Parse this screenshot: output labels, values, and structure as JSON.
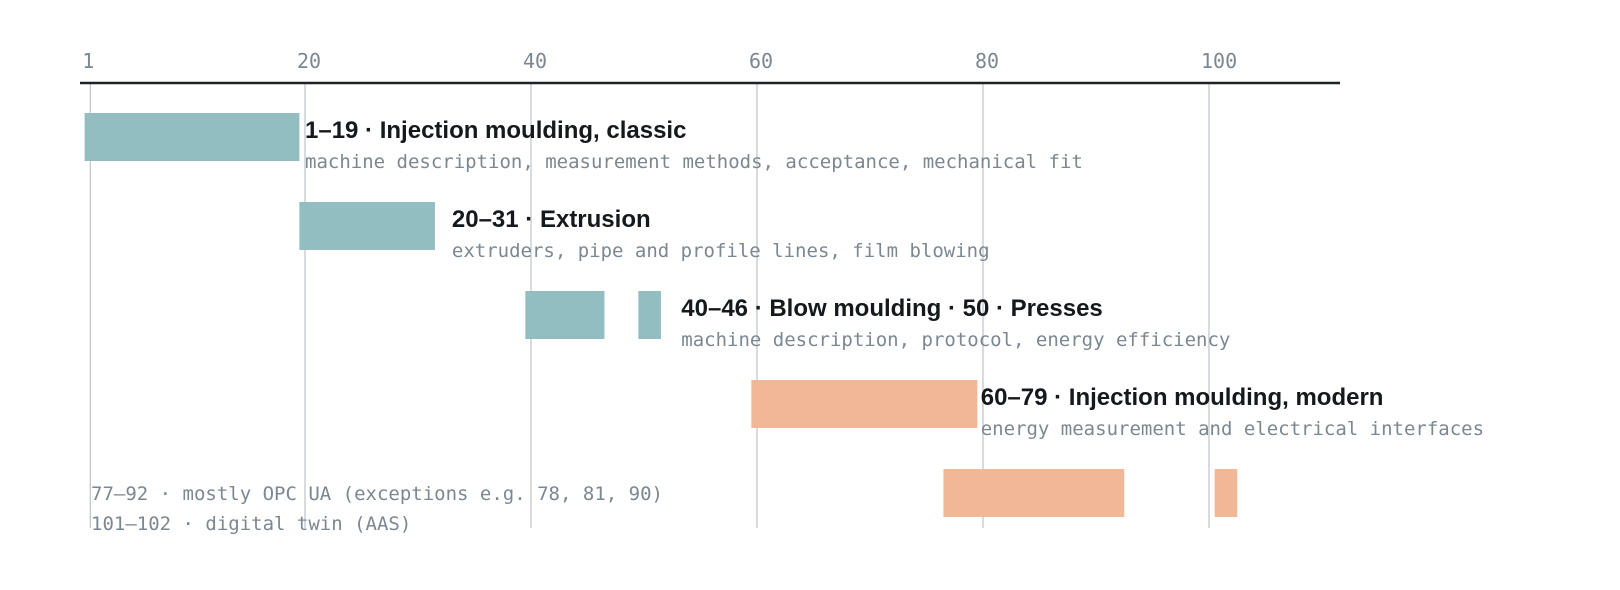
{
  "chart_data": {
    "type": "bar",
    "subtype": "range-timeline",
    "x_ticks": [
      1,
      20,
      40,
      60,
      80,
      100
    ],
    "xlim": [
      0,
      112
    ],
    "grid": true,
    "axis_position": "top",
    "colors": {
      "classic": "#92bec1",
      "modern": "#f0b897",
      "axis": "#1f2326",
      "grid": "#c3c8cc"
    },
    "bars": [
      {
        "start": 1,
        "end": 19,
        "row": 0,
        "group": "classic"
      },
      {
        "start": 20,
        "end": 31,
        "row": 1,
        "group": "classic"
      },
      {
        "start": 40,
        "end": 46,
        "row": 2,
        "group": "classic"
      },
      {
        "start": 50,
        "end": 51,
        "row": 2,
        "group": "classic"
      },
      {
        "start": 60,
        "end": 79,
        "row": 3,
        "group": "modern"
      },
      {
        "start": 77,
        "end": 92,
        "row": 4,
        "group": "modern"
      },
      {
        "start": 101,
        "end": 102,
        "row": 4,
        "group": "modern"
      }
    ],
    "labels": [
      {
        "row": 0,
        "anchor_x": 20,
        "title": "1–19 · Injection moulding, classic",
        "desc": "machine description, measurement methods, acceptance, mechanical fit"
      },
      {
        "row": 1,
        "anchor_x": 33,
        "title": "20–31 · Extrusion",
        "desc": "extruders, pipe and profile lines, film blowing"
      },
      {
        "row": 2,
        "anchor_x": 53.3,
        "title": "40–46 · Blow moulding  ·  50 · Presses",
        "desc": "machine description, protocol, energy efficiency"
      },
      {
        "row": 3,
        "anchor_x": 79.8,
        "title": "60–79 · Injection moulding, modern",
        "desc": "energy measurement and electrical interfaces"
      }
    ],
    "notes": [
      "77–92 · mostly OPC UA (exceptions e.g. 78, 81, 90)",
      "101–102 · digital twin (AAS)"
    ]
  }
}
